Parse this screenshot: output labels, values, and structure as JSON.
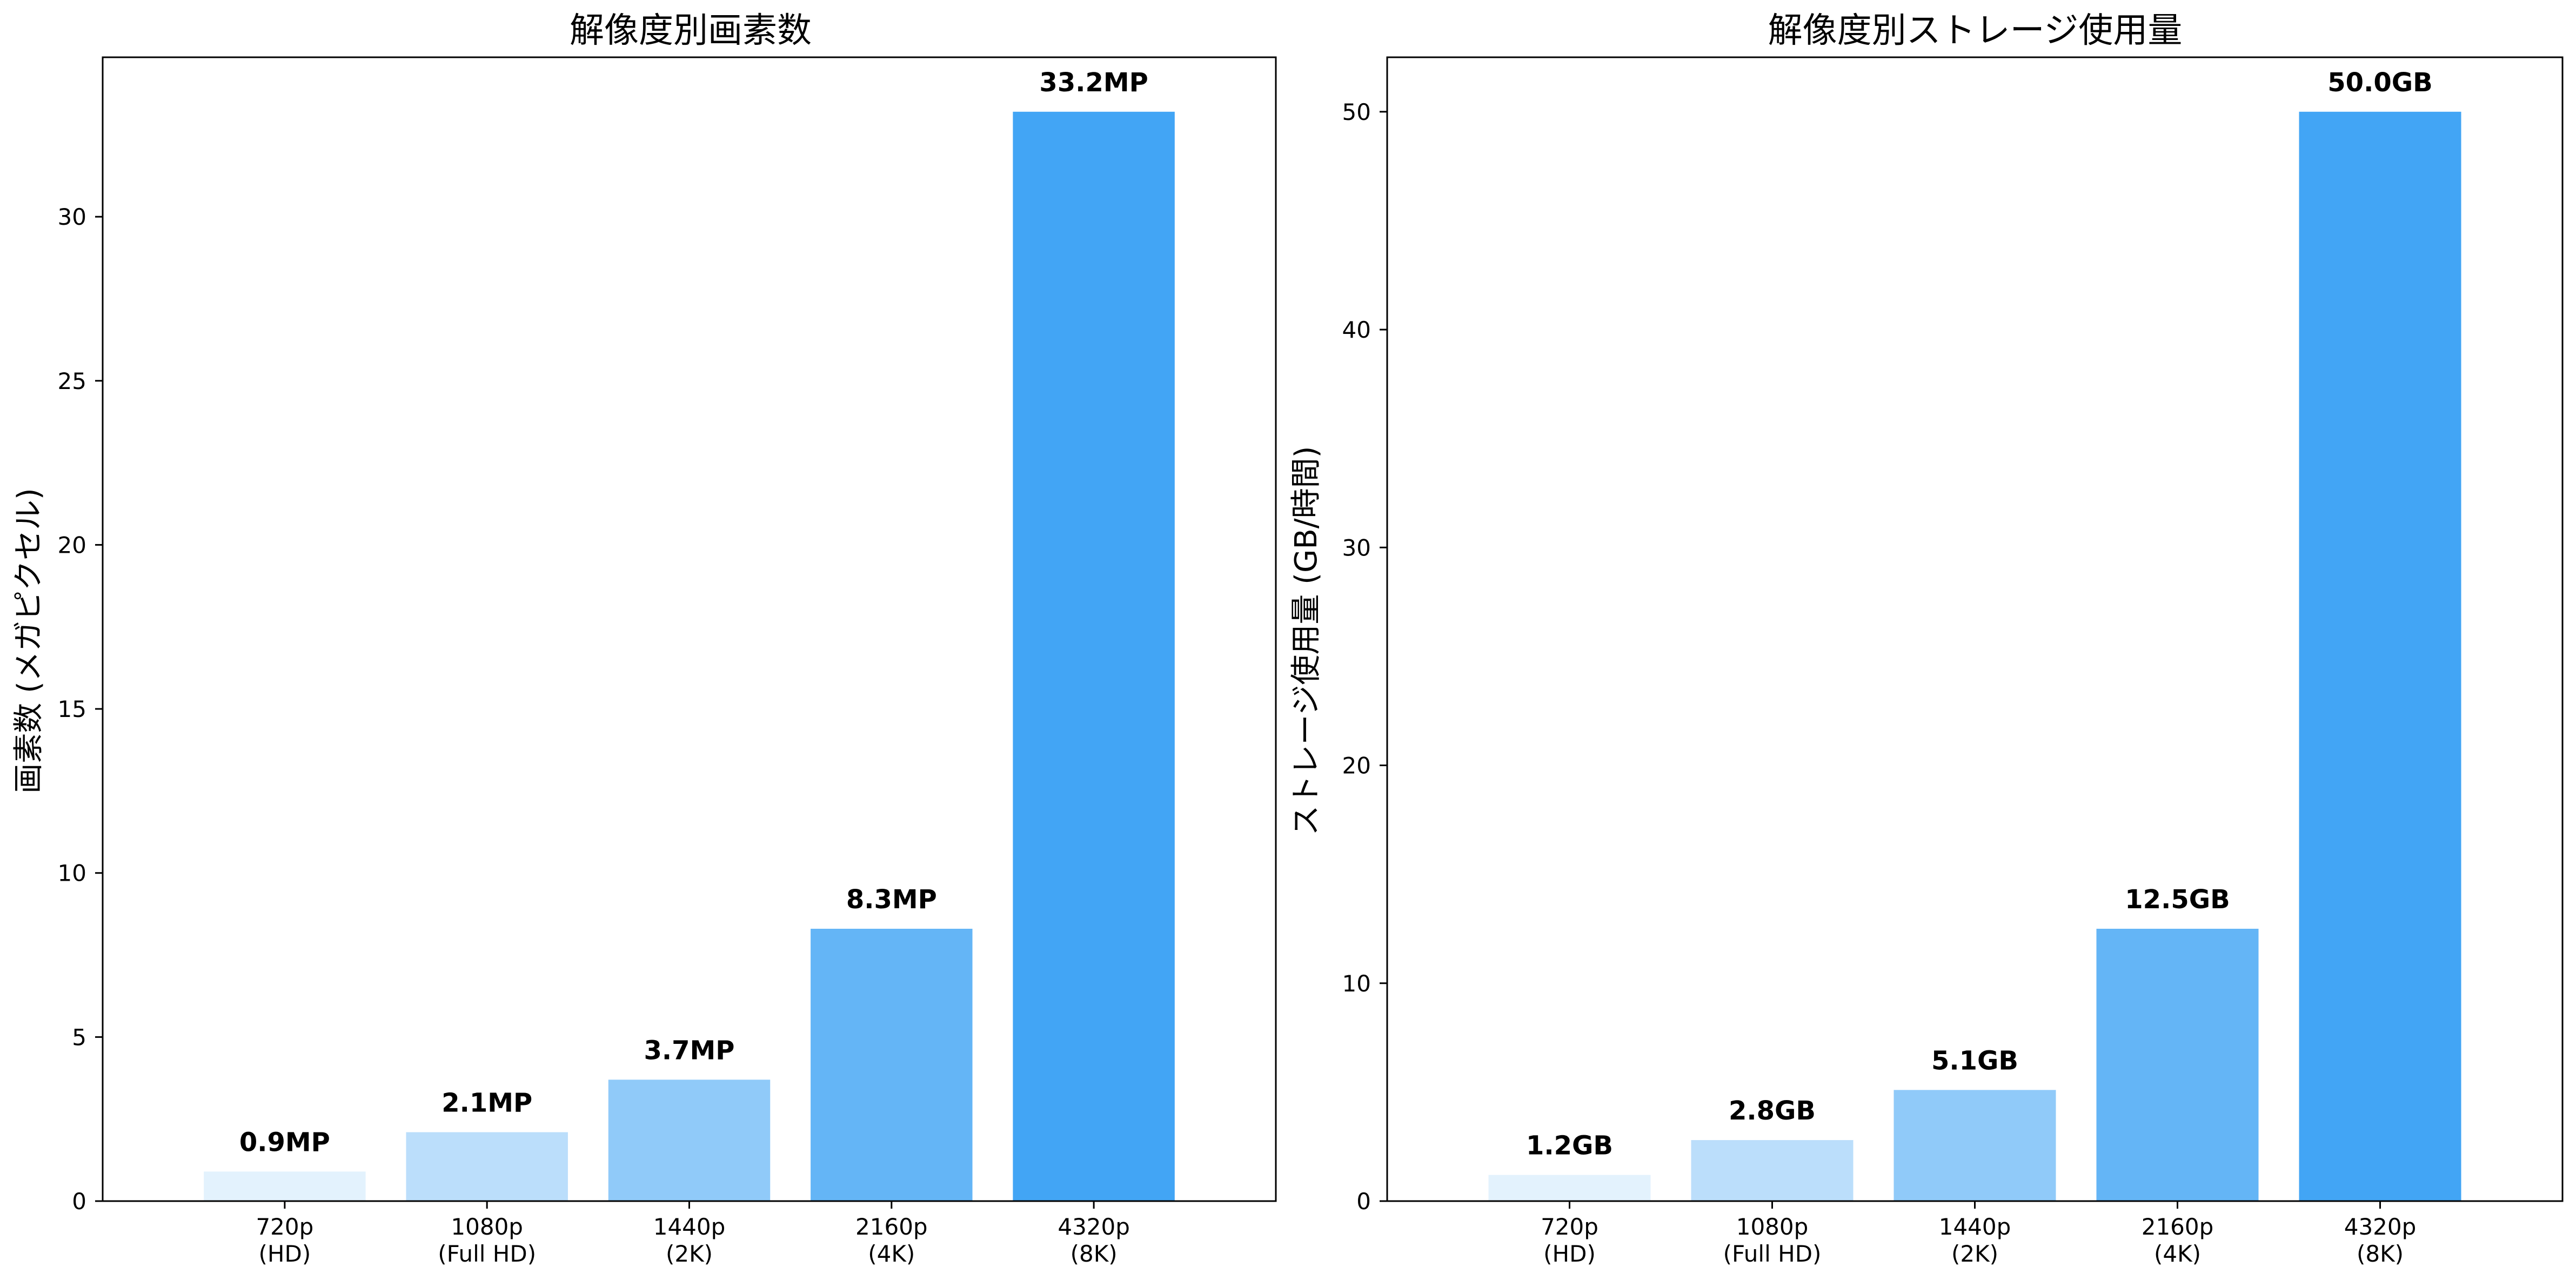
{
  "chart_data": [
    {
      "type": "bar",
      "title": "解像度別画素数",
      "xlabel": "",
      "ylabel": "画素数 (メガピクセル)",
      "categories": [
        [
          "720p",
          "(HD)"
        ],
        [
          "1080p",
          "(Full HD)"
        ],
        [
          "1440p",
          "(2K)"
        ],
        [
          "2160p",
          "(4K)"
        ],
        [
          "4320p",
          "(8K)"
        ]
      ],
      "values": [
        0.9,
        2.1,
        3.7,
        8.3,
        33.2
      ],
      "value_labels": [
        "0.9MP",
        "2.1MP",
        "3.7MP",
        "8.3MP",
        "33.2MP"
      ],
      "bar_colors": [
        "#e3f2fd",
        "#bbdefb",
        "#90caf9",
        "#64b5f6",
        "#42a5f5"
      ],
      "ylim": [
        0,
        34.86
      ],
      "yticks": [
        0,
        5,
        10,
        15,
        20,
        25,
        30
      ],
      "grid": false,
      "legend": "none"
    },
    {
      "type": "bar",
      "title": "解像度別ストレージ使用量",
      "xlabel": "",
      "ylabel": "ストレージ使用量 (GB/時間)",
      "categories": [
        [
          "720p",
          "(HD)"
        ],
        [
          "1080p",
          "(Full HD)"
        ],
        [
          "1440p",
          "(2K)"
        ],
        [
          "2160p",
          "(4K)"
        ],
        [
          "4320p",
          "(8K)"
        ]
      ],
      "values": [
        1.2,
        2.8,
        5.1,
        12.5,
        50.0
      ],
      "value_labels": [
        "1.2GB",
        "2.8GB",
        "5.1GB",
        "12.5GB",
        "50.0GB"
      ],
      "bar_colors": [
        "#e3f2fd",
        "#bbdefb",
        "#90caf9",
        "#64b5f6",
        "#42a5f5"
      ],
      "ylim": [
        0,
        52.5
      ],
      "yticks": [
        0,
        10,
        20,
        30,
        40,
        50
      ],
      "grid": false,
      "legend": "none"
    }
  ]
}
